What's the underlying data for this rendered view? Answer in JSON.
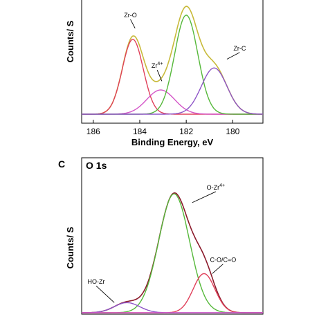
{
  "chart_data": [
    {
      "type": "line",
      "panel_letter": "",
      "title": "",
      "xlabel": "Binding Energy, eV",
      "ylabel": "Counts/ S",
      "x_reversed": true,
      "xlim": [
        186.5,
        178.7
      ],
      "ylim": [
        0,
        1.05
      ],
      "x_ticks": [
        "186",
        "184",
        "182",
        "180"
      ],
      "x_tick_values": [
        186,
        184,
        182,
        180
      ],
      "series": [
        {
          "color": "#c8ba3a",
          "role": "envelope",
          "peaks": [
            {
              "center": 184.3,
              "amp": 0.68,
              "sigma": 0.45
            },
            {
              "center": 183.1,
              "amp": 0.22,
              "sigma": 0.6
            },
            {
              "center": 182.0,
              "amp": 0.9,
              "sigma": 0.5
            },
            {
              "center": 180.8,
              "amp": 0.42,
              "sigma": 0.55
            }
          ]
        },
        {
          "color": "#e0405a",
          "peaks": [
            {
              "center": 184.3,
              "amp": 0.68,
              "sigma": 0.45
            }
          ]
        },
        {
          "color": "#d455c8",
          "peaks": [
            {
              "center": 183.1,
              "amp": 0.22,
              "sigma": 0.6
            }
          ]
        },
        {
          "color": "#55b83a",
          "peaks": [
            {
              "center": 182.0,
              "amp": 0.9,
              "sigma": 0.5
            }
          ]
        },
        {
          "color": "#8e55c8",
          "peaks": [
            {
              "center": 180.8,
              "amp": 0.42,
              "sigma": 0.55
            }
          ]
        }
      ],
      "annotations": [
        {
          "text": "Zr-O",
          "x": 184.4,
          "y": 0.88,
          "tx": 184.2,
          "ty": 0.78
        },
        {
          "text": "Zr",
          "sup": "4+",
          "x": 183.25,
          "y": 0.42,
          "tx": 183.05,
          "ty": 0.3
        },
        {
          "text": "Zr-C",
          "x": 179.7,
          "y": 0.58,
          "tx": 180.25,
          "ty": 0.5
        }
      ]
    },
    {
      "type": "line",
      "panel_letter": "C",
      "title": "O 1s",
      "xlabel": "",
      "ylabel": "Counts/ S",
      "xlim": [
        0,
        1
      ],
      "ylim": [
        0,
        1.05
      ],
      "series": [
        {
          "color": "#8b1a2b",
          "role": "envelope",
          "peaks": [
            {
              "center": 0.25,
              "amp": 0.07,
              "sigma": 0.07
            },
            {
              "center": 0.51,
              "amp": 0.82,
              "sigma": 0.085
            },
            {
              "center": 0.675,
              "amp": 0.27,
              "sigma": 0.06
            }
          ]
        },
        {
          "color": "#55b83a",
          "peaks": [
            {
              "center": 0.51,
              "amp": 0.82,
              "sigma": 0.085
            }
          ]
        },
        {
          "color": "#e0405a",
          "peaks": [
            {
              "center": 0.675,
              "amp": 0.27,
              "sigma": 0.06
            }
          ]
        },
        {
          "color": "#8e55c8",
          "peaks": [
            {
              "center": 0.25,
              "amp": 0.07,
              "sigma": 0.07
            }
          ]
        },
        {
          "color": "#d455c8",
          "role": "baseline",
          "peaks": []
        }
      ],
      "annotations": [
        {
          "text": "O-Zr",
          "sup": "4+",
          "x": 0.74,
          "y": 0.85,
          "tx": 0.61,
          "ty": 0.76
        },
        {
          "text": "C-O/C=O",
          "x": 0.78,
          "y": 0.35,
          "tx": 0.72,
          "ty": 0.27
        },
        {
          "text": "HO-Zr",
          "x": 0.08,
          "y": 0.2,
          "tx": 0.18,
          "ty": 0.07
        }
      ]
    }
  ]
}
